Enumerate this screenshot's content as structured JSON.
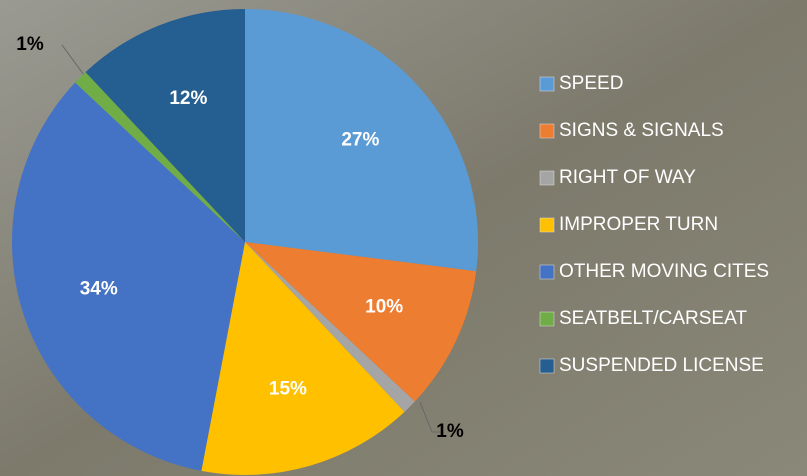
{
  "chart_data": {
    "type": "pie",
    "categories": [
      "SPEED",
      "SIGNS & SIGNALS",
      "RIGHT OF WAY",
      "IMPROPER TURN",
      "OTHER MOVING CITES",
      "SEATBELT/CARSEAT",
      "SUSPENDED LICENSE"
    ],
    "values": [
      27,
      10,
      1,
      15,
      34,
      1,
      12
    ],
    "value_labels": [
      "27%",
      "10%",
      "1%",
      "15%",
      "34%",
      "1%",
      "12%"
    ],
    "colors": [
      "#5b9bd5",
      "#ed7d31",
      "#a5a5a5",
      "#ffc000",
      "#4472c4",
      "#70ad47",
      "#255e91"
    ],
    "legend": "right"
  }
}
